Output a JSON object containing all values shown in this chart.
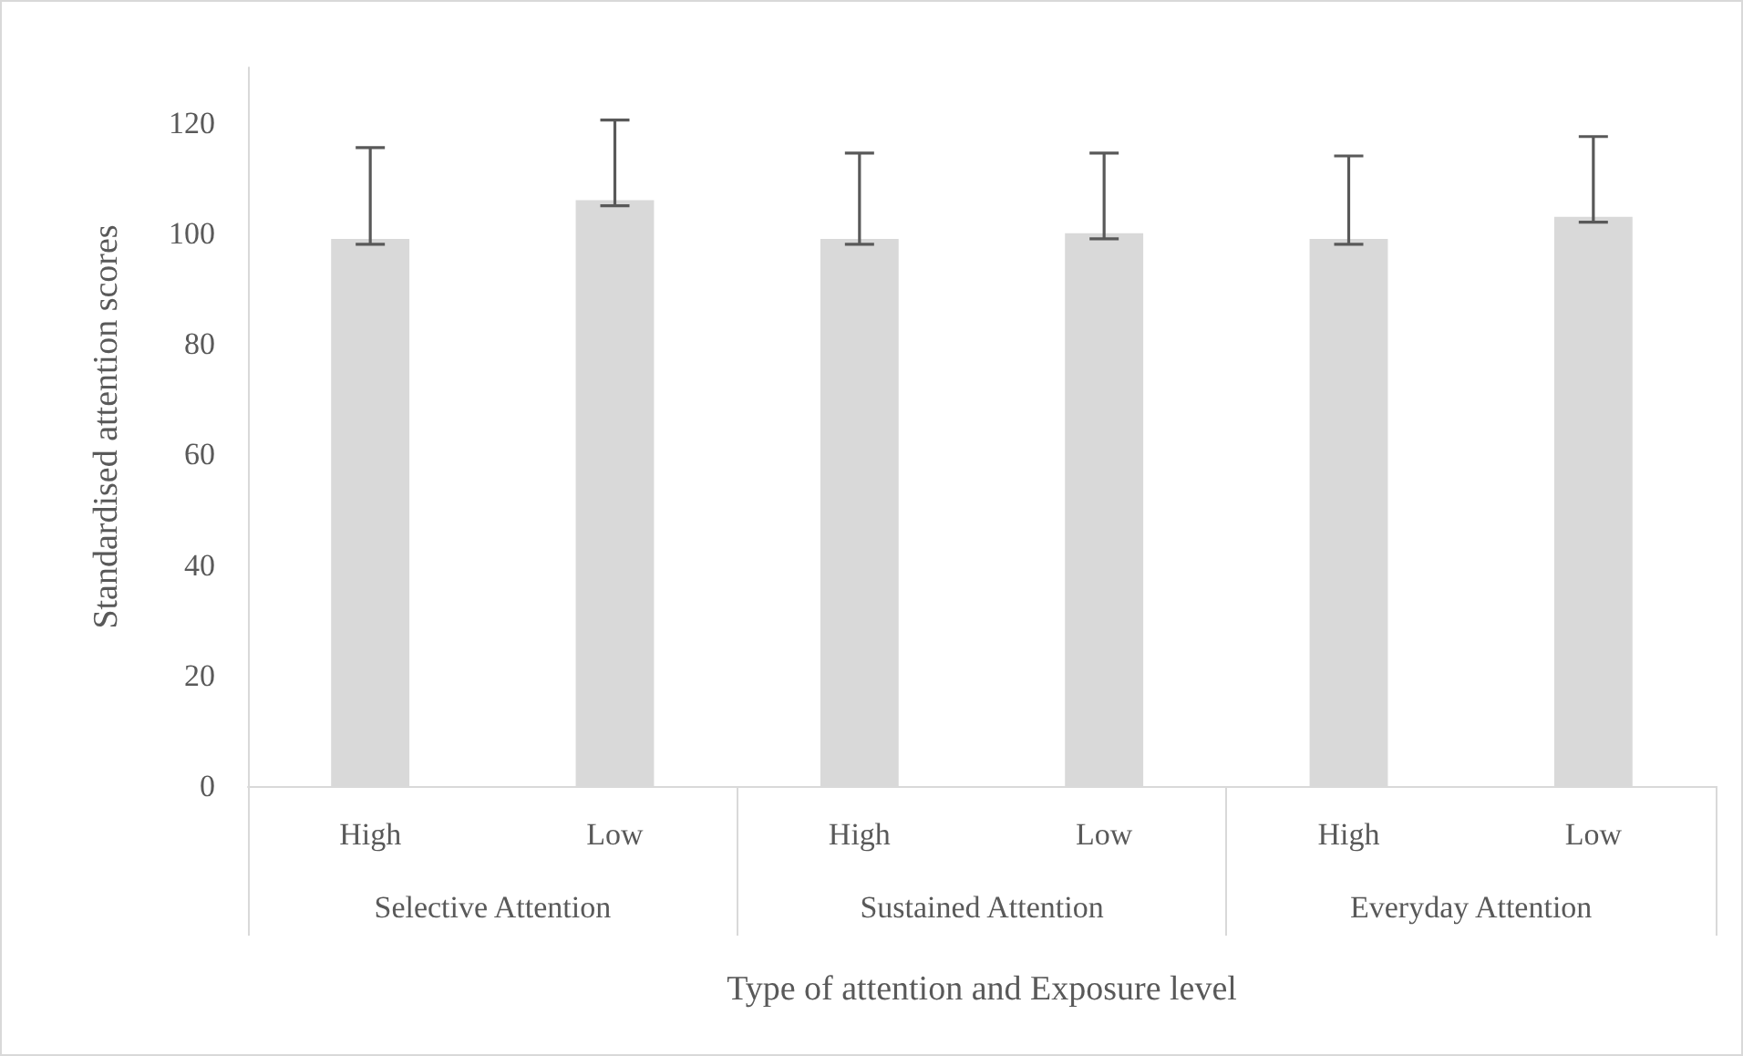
{
  "chart_data": {
    "type": "bar",
    "xlabel": "Type of attention and Exposure level",
    "ylabel": "Standardised attention scores",
    "categories": [
      "High",
      "Low",
      "High",
      "Low",
      "High",
      "Low"
    ],
    "annotations": [
      "Selective Attention",
      "Sustained Attention",
      "Everyday Attention"
    ],
    "values": [
      99,
      106,
      99,
      100,
      99,
      103
    ],
    "errors": [
      [
        98,
        115.5
      ],
      [
        105,
        120.5
      ],
      [
        98,
        114.5
      ],
      [
        99,
        114.5
      ],
      [
        98,
        114
      ],
      [
        102,
        117.5
      ]
    ],
    "color": "#d9d9d9",
    "ylim": [
      0,
      130
    ],
    "yticks": [
      0,
      20,
      40,
      60,
      80,
      100,
      120
    ],
    "grid": false
  }
}
